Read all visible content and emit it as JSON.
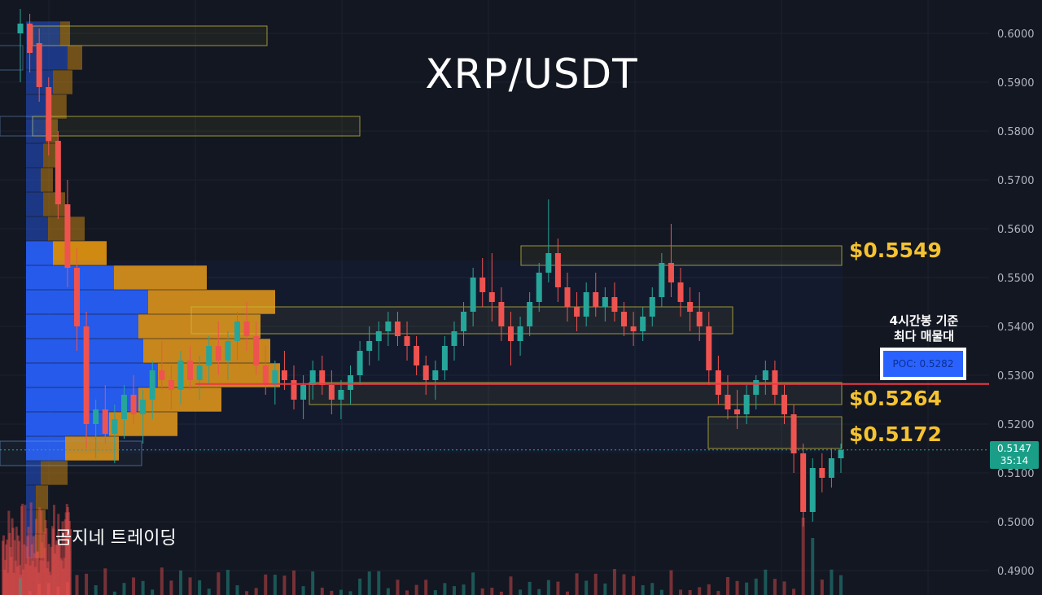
{
  "header": {
    "title": "XRP/USDT"
  },
  "branding": {
    "channel": "곰지네 트레이딩"
  },
  "levels": [
    {
      "label": "$0.5549",
      "price": 0.5549
    },
    {
      "label": "$0.5264",
      "price": 0.5264
    },
    {
      "label": "$0.5172",
      "price": 0.5172
    }
  ],
  "poc": {
    "note_line1": "4시간봉 기준",
    "note_line2": "최다 매물대",
    "label": "POC: 0.5282",
    "price": 0.5282
  },
  "current": {
    "price": "0.5147",
    "countdown": "35:14",
    "value": 0.5147
  },
  "colors": {
    "background": "#131722",
    "bull": "#26a69a",
    "bear": "#ef5350",
    "level_text": "#f5c230",
    "poc_line": "#f23645",
    "profile_blue": "#2962ff",
    "profile_orange": "#e6960f",
    "zone_border": "#c8c03c"
  },
  "chart_data": {
    "type": "candlestick",
    "title": "XRP/USDT",
    "timeframe": "4h",
    "yaxis_side": "right",
    "ylim": [
      0.485,
      0.605
    ],
    "yticks": [
      "0.6000",
      "0.5900",
      "0.5800",
      "0.5700",
      "0.5600",
      "0.5500",
      "0.5400",
      "0.5300",
      "0.5200",
      "0.5100",
      "0.5000",
      "0.4900"
    ],
    "candles": [
      [
        0.6,
        0.605,
        0.59,
        0.602
      ],
      [
        0.602,
        0.604,
        0.592,
        0.596
      ],
      [
        0.598,
        0.601,
        0.586,
        0.589
      ],
      [
        0.589,
        0.591,
        0.575,
        0.578
      ],
      [
        0.578,
        0.58,
        0.562,
        0.565
      ],
      [
        0.565,
        0.57,
        0.548,
        0.552
      ],
      [
        0.552,
        0.556,
        0.535,
        0.54
      ],
      [
        0.54,
        0.543,
        0.515,
        0.52
      ],
      [
        0.52,
        0.525,
        0.513,
        0.523
      ],
      [
        0.523,
        0.528,
        0.516,
        0.518
      ],
      [
        0.518,
        0.524,
        0.512,
        0.521
      ],
      [
        0.521,
        0.528,
        0.517,
        0.526
      ],
      [
        0.526,
        0.53,
        0.52,
        0.522
      ],
      [
        0.522,
        0.527,
        0.516,
        0.525
      ],
      [
        0.525,
        0.533,
        0.521,
        0.531
      ],
      [
        0.531,
        0.537,
        0.527,
        0.529
      ],
      [
        0.529,
        0.532,
        0.523,
        0.527
      ],
      [
        0.527,
        0.535,
        0.524,
        0.533
      ],
      [
        0.533,
        0.536,
        0.527,
        0.529
      ],
      [
        0.529,
        0.534,
        0.525,
        0.532
      ],
      [
        0.532,
        0.538,
        0.528,
        0.536
      ],
      [
        0.536,
        0.541,
        0.53,
        0.533
      ],
      [
        0.533,
        0.539,
        0.529,
        0.537
      ],
      [
        0.537,
        0.543,
        0.533,
        0.541
      ],
      [
        0.541,
        0.545,
        0.535,
        0.538
      ],
      [
        0.538,
        0.541,
        0.53,
        0.532
      ],
      [
        0.532,
        0.536,
        0.526,
        0.528
      ],
      [
        0.528,
        0.533,
        0.524,
        0.531
      ],
      [
        0.531,
        0.535,
        0.527,
        0.529
      ],
      [
        0.529,
        0.532,
        0.523,
        0.525
      ],
      [
        0.525,
        0.53,
        0.521,
        0.528
      ],
      [
        0.528,
        0.533,
        0.525,
        0.531
      ],
      [
        0.531,
        0.534,
        0.526,
        0.528
      ],
      [
        0.528,
        0.531,
        0.522,
        0.525
      ],
      [
        0.525,
        0.529,
        0.521,
        0.527
      ],
      [
        0.527,
        0.532,
        0.524,
        0.53
      ],
      [
        0.53,
        0.537,
        0.528,
        0.535
      ],
      [
        0.535,
        0.54,
        0.532,
        0.537
      ],
      [
        0.537,
        0.541,
        0.533,
        0.539
      ],
      [
        0.539,
        0.543,
        0.536,
        0.541
      ],
      [
        0.541,
        0.543,
        0.536,
        0.538
      ],
      [
        0.538,
        0.541,
        0.533,
        0.536
      ],
      [
        0.536,
        0.538,
        0.53,
        0.532
      ],
      [
        0.532,
        0.534,
        0.526,
        0.529
      ],
      [
        0.529,
        0.533,
        0.525,
        0.531
      ],
      [
        0.531,
        0.538,
        0.529,
        0.536
      ],
      [
        0.536,
        0.541,
        0.533,
        0.539
      ],
      [
        0.539,
        0.545,
        0.536,
        0.543
      ],
      [
        0.543,
        0.552,
        0.54,
        0.55
      ],
      [
        0.55,
        0.554,
        0.544,
        0.547
      ],
      [
        0.547,
        0.555,
        0.541,
        0.545
      ],
      [
        0.545,
        0.548,
        0.537,
        0.54
      ],
      [
        0.54,
        0.543,
        0.532,
        0.537
      ],
      [
        0.537,
        0.542,
        0.534,
        0.54
      ],
      [
        0.54,
        0.547,
        0.538,
        0.545
      ],
      [
        0.545,
        0.553,
        0.543,
        0.551
      ],
      [
        0.551,
        0.566,
        0.549,
        0.555
      ],
      [
        0.555,
        0.558,
        0.545,
        0.548
      ],
      [
        0.548,
        0.551,
        0.541,
        0.544
      ],
      [
        0.544,
        0.547,
        0.539,
        0.542
      ],
      [
        0.542,
        0.549,
        0.54,
        0.547
      ],
      [
        0.547,
        0.551,
        0.542,
        0.544
      ],
      [
        0.544,
        0.548,
        0.541,
        0.546
      ],
      [
        0.546,
        0.549,
        0.541,
        0.543
      ],
      [
        0.543,
        0.545,
        0.538,
        0.54
      ],
      [
        0.54,
        0.543,
        0.536,
        0.539
      ],
      [
        0.539,
        0.544,
        0.537,
        0.542
      ],
      [
        0.542,
        0.548,
        0.54,
        0.546
      ],
      [
        0.546,
        0.555,
        0.544,
        0.553
      ],
      [
        0.553,
        0.561,
        0.546,
        0.549
      ],
      [
        0.549,
        0.552,
        0.542,
        0.545
      ],
      [
        0.545,
        0.548,
        0.539,
        0.543
      ],
      [
        0.543,
        0.547,
        0.537,
        0.54
      ],
      [
        0.54,
        0.543,
        0.528,
        0.531
      ],
      [
        0.531,
        0.534,
        0.524,
        0.526
      ],
      [
        0.526,
        0.53,
        0.521,
        0.523
      ],
      [
        0.523,
        0.527,
        0.519,
        0.522
      ],
      [
        0.522,
        0.528,
        0.52,
        0.526
      ],
      [
        0.526,
        0.53,
        0.523,
        0.529
      ],
      [
        0.529,
        0.533,
        0.526,
        0.531
      ],
      [
        0.531,
        0.533,
        0.524,
        0.526
      ],
      [
        0.526,
        0.528,
        0.52,
        0.522
      ],
      [
        0.522,
        0.524,
        0.51,
        0.514
      ],
      [
        0.514,
        0.516,
        0.499,
        0.502
      ],
      [
        0.502,
        0.513,
        0.5,
        0.511
      ],
      [
        0.511,
        0.514,
        0.506,
        0.509
      ],
      [
        0.509,
        0.515,
        0.507,
        0.513
      ],
      [
        0.513,
        0.516,
        0.51,
        0.5147
      ]
    ],
    "volume_profile": [
      {
        "price": 0.5295,
        "buy": 2,
        "sell": 1
      },
      {
        "price": 0.5305,
        "buy": 1,
        "sell": 1
      },
      {
        "price": 0.5315,
        "buy": 1,
        "sell": 1
      }
    ],
    "annotations": [
      {
        "text": "$0.5549",
        "price": 0.5549
      },
      {
        "text": "$0.5264",
        "price": 0.5264
      },
      {
        "text": "$0.5172",
        "price": 0.5172
      },
      {
        "text": "POC: 0.5282",
        "price": 0.5282
      }
    ]
  }
}
